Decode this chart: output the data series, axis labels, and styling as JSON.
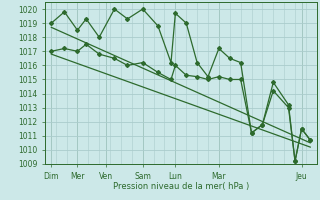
{
  "xlabel": "Pression niveau de la mer( hPa )",
  "bg_color": "#cce8e8",
  "grid_color": "#aacccc",
  "line_color": "#2d6a2d",
  "ylim": [
    1009,
    1020.5
  ],
  "xlim": [
    0,
    12.5
  ],
  "ytick_values": [
    1009,
    1010,
    1011,
    1012,
    1013,
    1014,
    1015,
    1016,
    1017,
    1018,
    1019,
    1020
  ],
  "day_positions": [
    0.3,
    1.5,
    2.8,
    4.5,
    6.0,
    8.0,
    11.8
  ],
  "day_labels": [
    "Dim",
    "Mer",
    "Ven",
    "Sam",
    "Lun",
    "Mar",
    "Jeu"
  ],
  "vline_positions": [
    0.3,
    1.5,
    2.8,
    4.5,
    6.0,
    8.0,
    11.8
  ],
  "series1_x": [
    0.3,
    0.9,
    1.5,
    1.9,
    2.5,
    3.2,
    3.8,
    4.5,
    5.2,
    5.8,
    6.0,
    6.5,
    7.0,
    7.5,
    8.0,
    8.5,
    9.0,
    9.5,
    10.0,
    10.5,
    11.2,
    11.5,
    11.8,
    12.2
  ],
  "series1_y": [
    1019.0,
    1019.8,
    1018.5,
    1019.3,
    1018.0,
    1020.0,
    1019.3,
    1020.0,
    1018.8,
    1016.2,
    1019.7,
    1019.0,
    1016.2,
    1015.2,
    1017.2,
    1016.5,
    1016.2,
    1011.2,
    1011.8,
    1014.8,
    1013.2,
    1009.2,
    1011.5,
    1010.7
  ],
  "series2_x": [
    0.3,
    0.9,
    1.5,
    1.9,
    2.5,
    3.2,
    3.8,
    4.5,
    5.2,
    5.8,
    6.0,
    6.5,
    7.0,
    7.5,
    8.0,
    8.5,
    9.0,
    9.5,
    10.0,
    10.5,
    11.2,
    11.5,
    11.8,
    12.2
  ],
  "series2_y": [
    1017.0,
    1017.2,
    1017.0,
    1017.5,
    1016.8,
    1016.5,
    1016.0,
    1016.2,
    1015.5,
    1015.0,
    1016.0,
    1015.3,
    1015.2,
    1015.0,
    1015.2,
    1015.0,
    1015.0,
    1011.2,
    1011.8,
    1014.2,
    1013.0,
    1009.2,
    1011.5,
    1010.7
  ],
  "trend1_x": [
    0.3,
    12.2
  ],
  "trend1_y": [
    1018.7,
    1010.5
  ],
  "trend2_x": [
    0.3,
    12.2
  ],
  "trend2_y": [
    1016.8,
    1010.2
  ]
}
